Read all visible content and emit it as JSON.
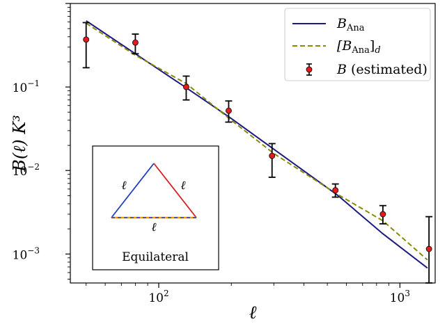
{
  "chart_data": {
    "type": "line",
    "xscale": "log",
    "yscale": "log",
    "xlim": [
      43,
      1400
    ],
    "ylim": [
      0.00045,
      1.0
    ],
    "xlabel": "ℓ",
    "ylabel": "B(ℓ) K³",
    "xticks": [
      {
        "value": 100,
        "label": "10²",
        "base": "10",
        "exp": "2"
      },
      {
        "value": 1000,
        "label": "10³",
        "base": "10",
        "exp": "3"
      }
    ],
    "yticks": [
      {
        "value": 0.1,
        "label": "10⁻¹",
        "base": "10",
        "exp": "−1"
      },
      {
        "value": 0.01,
        "label": "10⁻²",
        "base": "10",
        "exp": "−2"
      },
      {
        "value": 0.001,
        "label": "10⁻³",
        "base": "10",
        "exp": "−3"
      }
    ],
    "series": [
      {
        "name": "B_Ana",
        "legend_main": "B",
        "legend_sub": "Ana",
        "style": "solid",
        "color": "#1a1a80",
        "x": [
          50,
          80,
          130,
          200,
          300,
          550,
          850,
          1300
        ],
        "y": [
          0.62,
          0.25,
          0.098,
          0.042,
          0.018,
          0.0051,
          0.00175,
          0.00068
        ]
      },
      {
        "name": "[B_Ana]_d",
        "legend_main": "[B",
        "legend_sub": "Ana",
        "legend_close": "]",
        "legend_sub2": "d",
        "style": "dashed",
        "color": "#8a8a00",
        "x": [
          50,
          80,
          130,
          200,
          300,
          550,
          850,
          1300
        ],
        "y": [
          0.58,
          0.24,
          0.11,
          0.04,
          0.016,
          0.0052,
          0.0025,
          0.00085
        ]
      }
    ],
    "points": {
      "name": "B (estimated)",
      "legend_main": "B",
      "legend_rest": "(estimated)",
      "color": "#e41a1c",
      "x": [
        50,
        80,
        130,
        195,
        295,
        540,
        850,
        1320
      ],
      "y": [
        0.37,
        0.34,
        0.1,
        0.052,
        0.015,
        0.0058,
        0.003,
        0.00115
      ],
      "err_low": [
        0.17,
        0.25,
        0.07,
        0.038,
        0.0083,
        0.0048,
        0.0023,
        0.00045
      ],
      "err_high": [
        0.59,
        0.43,
        0.135,
        0.068,
        0.021,
        0.0069,
        0.0038,
        0.0028
      ]
    },
    "legend_position": "top-right",
    "grid": false,
    "inset": {
      "caption": "Equilateral",
      "side_label": "ℓ",
      "left_color": "#1f3fbf",
      "right_color": "#d62020",
      "bottom_color": "#ff9900",
      "bottom_dash_color": "#1f3fbf"
    }
  }
}
